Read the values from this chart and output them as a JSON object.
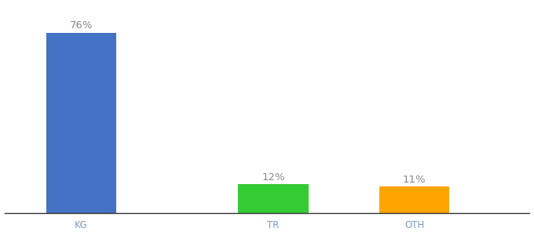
{
  "categories": [
    "KG",
    "TR",
    "OTH"
  ],
  "values": [
    76,
    12,
    11
  ],
  "labels": [
    "76%",
    "12%",
    "11%"
  ],
  "bar_colors": [
    "#4472C4",
    "#33CC33",
    "#FFA500"
  ],
  "background_color": "#ffffff",
  "ylim": [
    0,
    88
  ],
  "bar_width": 0.55,
  "bar_positions": [
    1.0,
    2.2,
    3.0
  ],
  "xlim": [
    0.4,
    4.5
  ],
  "label_fontsize": 9.5,
  "tick_fontsize": 8.5,
  "tick_color": "#7a9abf",
  "label_color": "#888888"
}
